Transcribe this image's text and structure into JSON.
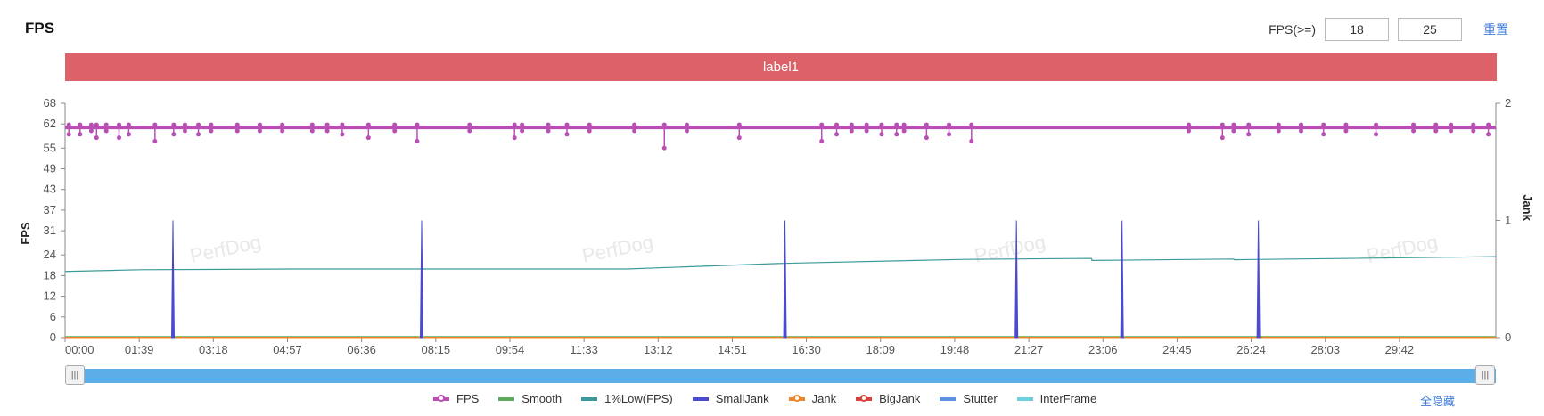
{
  "header": {
    "title": "FPS",
    "fps_filter_label": "FPS(>=)",
    "fps_min": "18",
    "fps_max": "25",
    "reset_label": "重置"
  },
  "label_bar": {
    "text": "label1",
    "color": "#dc6169"
  },
  "watermark": "PerfDog",
  "chart_data": {
    "type": "line",
    "ylabel": "FPS",
    "y2label": "Jank",
    "y_ticks": [
      "68",
      "62",
      "55",
      "49",
      "43",
      "37",
      "31",
      "24",
      "18",
      "12",
      "6",
      "0"
    ],
    "y2_ticks": [
      "2",
      "1",
      "0"
    ],
    "ylim": [
      0,
      68
    ],
    "y2lim": [
      0,
      2
    ],
    "x_ticks": [
      "00:00",
      "01:39",
      "03:18",
      "04:57",
      "06:36",
      "08:15",
      "09:54",
      "11:33",
      "13:12",
      "14:51",
      "16:30",
      "18:09",
      "19:48",
      "21:27",
      "23:06",
      "24:45",
      "26:24",
      "28:03",
      "29:42"
    ],
    "x_range_seconds": [
      0,
      1910
    ],
    "series": [
      {
        "name": "FPS",
        "color": "#b94fb5",
        "baseline": 61,
        "dips": [
          [
            5,
            59
          ],
          [
            20,
            59
          ],
          [
            35,
            60
          ],
          [
            42,
            58
          ],
          [
            55,
            60
          ],
          [
            72,
            58
          ],
          [
            85,
            59
          ],
          [
            120,
            57
          ],
          [
            145,
            59
          ],
          [
            160,
            60
          ],
          [
            178,
            59
          ],
          [
            195,
            60
          ],
          [
            230,
            60
          ],
          [
            260,
            60
          ],
          [
            290,
            60
          ],
          [
            330,
            60
          ],
          [
            350,
            60
          ],
          [
            370,
            59
          ],
          [
            405,
            58
          ],
          [
            440,
            60
          ],
          [
            470,
            57
          ],
          [
            540,
            60
          ],
          [
            600,
            58
          ],
          [
            610,
            60
          ],
          [
            645,
            60
          ],
          [
            670,
            59
          ],
          [
            700,
            60
          ],
          [
            760,
            60
          ],
          [
            800,
            55
          ],
          [
            830,
            60
          ],
          [
            900,
            58
          ],
          [
            1010,
            57
          ],
          [
            1030,
            59
          ],
          [
            1050,
            60
          ],
          [
            1070,
            60
          ],
          [
            1090,
            59
          ],
          [
            1110,
            59
          ],
          [
            1120,
            60
          ],
          [
            1150,
            58
          ],
          [
            1180,
            59
          ],
          [
            1210,
            57
          ],
          [
            1500,
            60
          ],
          [
            1545,
            58
          ],
          [
            1560,
            60
          ],
          [
            1580,
            59
          ],
          [
            1620,
            60
          ],
          [
            1650,
            60
          ],
          [
            1680,
            59
          ],
          [
            1710,
            60
          ],
          [
            1750,
            59
          ],
          [
            1800,
            60
          ],
          [
            1830,
            60
          ],
          [
            1850,
            60
          ],
          [
            1880,
            60
          ],
          [
            1900,
            59
          ]
        ]
      },
      {
        "name": "Smooth",
        "color": "#5daa5d"
      },
      {
        "name": "1%Low(FPS)",
        "color": "#3d9a9a",
        "points": [
          [
            0,
            19.2
          ],
          [
            100,
            19.7
          ],
          [
            300,
            19.9
          ],
          [
            500,
            19.9
          ],
          [
            750,
            19.9
          ],
          [
            950,
            21.5
          ],
          [
            1200,
            22.7
          ],
          [
            1370,
            23.0
          ],
          [
            1371,
            22.4
          ],
          [
            1560,
            22.8
          ],
          [
            1561,
            22.6
          ],
          [
            1910,
            23.5
          ]
        ]
      },
      {
        "name": "SmallJank",
        "color": "#4b4bcc",
        "spikes_jank": [
          144,
          476,
          961,
          1270,
          1411,
          1593
        ],
        "spike_value": 1
      },
      {
        "name": "Jank",
        "color": "#f0842a"
      },
      {
        "name": "BigJank",
        "color": "#d9413f"
      },
      {
        "name": "Stutter",
        "color": "#5b8fe0"
      },
      {
        "name": "InterFrame",
        "color": "#6fcfdc"
      }
    ]
  },
  "legend": {
    "items": [
      {
        "label": "FPS",
        "color": "#b94fb5",
        "marker": true
      },
      {
        "label": "Smooth",
        "color": "#5daa5d",
        "marker": false
      },
      {
        "label": "1%Low(FPS)",
        "color": "#3d9a9a",
        "marker": false
      },
      {
        "label": "SmallJank",
        "color": "#4b4bcc",
        "marker": false
      },
      {
        "label": "Jank",
        "color": "#f0842a",
        "marker": true
      },
      {
        "label": "BigJank",
        "color": "#d9413f",
        "marker": true
      },
      {
        "label": "Stutter",
        "color": "#5b8fe0",
        "marker": false
      },
      {
        "label": "InterFrame",
        "color": "#6fcfdc",
        "marker": false
      }
    ],
    "hide_all_label": "全隐藏"
  },
  "slider": {
    "handle_left_icon": "grip-icon",
    "handle_right_icon": "grip-icon"
  }
}
